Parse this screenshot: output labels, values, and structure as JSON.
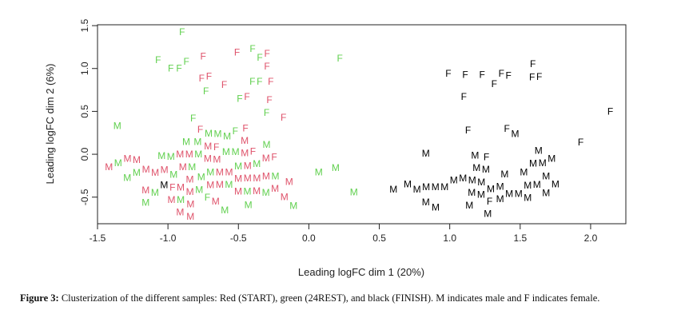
{
  "chart_data": {
    "type": "scatter",
    "xlabel": "Leading logFC dim 1 (20%)",
    "ylabel": "Leading logFC dim 2 (6%)",
    "xlim": [
      -1.5,
      2.25
    ],
    "ylim": [
      -0.81,
      1.51
    ],
    "xticks": [
      "-1.5",
      "-1.0",
      "-0.5",
      "0.0",
      "0.5",
      "1.0",
      "1.5",
      "2.0"
    ],
    "xtick_values": [
      -1.5,
      -1.0,
      -0.5,
      0.0,
      0.5,
      1.0,
      1.5,
      2.0
    ],
    "yticks": [
      "-0.5",
      "0.0",
      "0.5",
      "1.0",
      "1.5"
    ],
    "ytick_values": [
      -0.5,
      0.0,
      0.5,
      1.0,
      1.5
    ],
    "grid": false,
    "groups": [
      {
        "name": "START",
        "color": "#DF536B"
      },
      {
        "name": "24REST",
        "color": "#61D04F"
      },
      {
        "name": "FINISH",
        "color": "#000000"
      }
    ],
    "points": [
      [
        0.99,
        0.94,
        "F",
        "FINISH"
      ],
      [
        1.11,
        0.93,
        "F",
        "FINISH"
      ],
      [
        1.23,
        0.93,
        "F",
        "FINISH"
      ],
      [
        1.38,
        0.94,
        "F",
        "FINISH"
      ],
      [
        1.4,
        0.92,
        "F",
        "FINISH"
      ],
      [
        1.32,
        0.82,
        "F",
        "FINISH"
      ],
      [
        1.59,
        1.02,
        "F",
        "FINISH"
      ],
      [
        1.6,
        0.93,
        "F",
        "FINISH"
      ],
      [
        1.62,
        0.91,
        "F",
        "FINISH"
      ],
      [
        1.1,
        0.67,
        "F",
        "FINISH"
      ],
      [
        2.14,
        0.5,
        "F",
        "FINISH"
      ],
      [
        1.13,
        0.28,
        "F",
        "FINISH"
      ],
      [
        1.42,
        0.3,
        "F",
        "FINISH"
      ],
      [
        1.45,
        0.24,
        "M",
        "FINISH"
      ],
      [
        1.93,
        0.14,
        "F",
        "FINISH"
      ],
      [
        0.83,
        0.01,
        "M",
        "FINISH"
      ],
      [
        1.26,
        -0.05,
        "F",
        "FINISH"
      ],
      [
        1.18,
        -0.08,
        "M",
        "FINISH"
      ],
      [
        1.19,
        -0.16,
        "M",
        "FINISH"
      ],
      [
        1.24,
        -0.17,
        "M",
        "FINISH"
      ],
      [
        1.63,
        0.01,
        "M",
        "FINISH"
      ],
      [
        1.6,
        -0.09,
        "M",
        "FINISH"
      ],
      [
        1.65,
        -0.09,
        "M",
        "FINISH"
      ],
      [
        1.72,
        -0.05,
        "M",
        "FINISH"
      ],
      [
        1.53,
        -0.21,
        "M",
        "FINISH"
      ],
      [
        1.64,
        -0.25,
        "M",
        "FINISH"
      ],
      [
        0.6,
        -0.41,
        "M",
        "FINISH"
      ],
      [
        0.72,
        -0.35,
        "M",
        "FINISH"
      ],
      [
        0.82,
        -0.41,
        "M",
        "FINISH"
      ],
      [
        0.91,
        -0.38,
        "M",
        "FINISH"
      ],
      [
        0.95,
        -0.38,
        "M",
        "FINISH"
      ],
      [
        1.0,
        -0.38,
        "M",
        "FINISH"
      ],
      [
        1.05,
        -0.3,
        "M",
        "FINISH"
      ],
      [
        1.11,
        -0.28,
        "M",
        "FINISH"
      ],
      [
        1.15,
        -0.28,
        "M",
        "FINISH"
      ],
      [
        1.21,
        -0.28,
        "M",
        "FINISH"
      ],
      [
        1.39,
        -0.3,
        "M",
        "FINISH"
      ],
      [
        1.39,
        -0.34,
        "M",
        "FINISH"
      ],
      [
        1.51,
        -0.37,
        "M",
        "FINISH"
      ],
      [
        1.57,
        -0.35,
        "M",
        "FINISH"
      ],
      [
        1.7,
        -0.35,
        "M",
        "FINISH"
      ],
      [
        1.62,
        -0.45,
        "M",
        "FINISH"
      ],
      [
        1.45,
        -0.46,
        "M",
        "FINISH"
      ],
      [
        1.48,
        -0.46,
        "M",
        "FINISH"
      ],
      [
        1.51,
        -0.5,
        "M",
        "FINISH"
      ],
      [
        1.17,
        -0.47,
        "M",
        "FINISH"
      ],
      [
        1.22,
        -0.47,
        "M",
        "FINISH"
      ],
      [
        1.31,
        -0.47,
        "M",
        "FINISH"
      ],
      [
        1.34,
        -0.49,
        "M",
        "FINISH"
      ],
      [
        1.28,
        -0.53,
        "F",
        "FINISH"
      ],
      [
        1.14,
        -0.56,
        "M",
        "FINISH"
      ],
      [
        0.83,
        -0.56,
        "M",
        "FINISH"
      ],
      [
        0.9,
        -0.62,
        "M",
        "FINISH"
      ],
      [
        1.27,
        -0.65,
        "M",
        "FINISH"
      ],
      [
        -0.97,
        -0.31,
        "M",
        "FINISH"
      ],
      [
        0.22,
        1.12,
        "F",
        "24REST"
      ],
      [
        0.07,
        -0.21,
        "M",
        "24REST"
      ],
      [
        0.19,
        -0.16,
        "M",
        "24REST"
      ],
      [
        0.32,
        -0.44,
        "M",
        "24REST"
      ],
      [
        -0.9,
        1.44,
        "F",
        "24REST"
      ],
      [
        -1.07,
        1.1,
        "F",
        "24REST"
      ],
      [
        -0.98,
        1.0,
        "F",
        "24REST"
      ],
      [
        -0.91,
        1.0,
        "F",
        "24REST"
      ],
      [
        -0.88,
        1.08,
        "F",
        "24REST"
      ],
      [
        -0.38,
        1.23,
        "F",
        "24REST"
      ],
      [
        -0.34,
        1.13,
        "F",
        "24REST"
      ],
      [
        -0.73,
        0.77,
        "F",
        "24REST"
      ],
      [
        -0.38,
        0.85,
        "F",
        "24REST"
      ],
      [
        -0.37,
        0.85,
        "F",
        "24REST"
      ],
      [
        -0.49,
        0.65,
        "F",
        "24REST"
      ],
      [
        -0.3,
        0.5,
        "F",
        "24REST"
      ],
      [
        -0.82,
        0.42,
        "F",
        "24REST"
      ],
      [
        -1.36,
        0.33,
        "M",
        "24REST"
      ],
      [
        -0.66,
        0.24,
        "M",
        "24REST"
      ],
      [
        -0.62,
        0.23,
        "M",
        "24REST"
      ],
      [
        -0.6,
        0.27,
        "F",
        "24REST"
      ],
      [
        -1.2,
        -0.1,
        "M",
        "24REST"
      ],
      [
        -1.09,
        -0.03,
        "M",
        "24REST"
      ],
      [
        -1.04,
        -0.19,
        "M",
        "24REST"
      ],
      [
        -0.96,
        -0.04,
        "M",
        "24REST"
      ],
      [
        -0.87,
        0.02,
        "M",
        "24REST"
      ],
      [
        -0.77,
        0.01,
        "M",
        "24REST"
      ],
      [
        -0.59,
        0.03,
        "M",
        "24REST"
      ],
      [
        -0.54,
        -0.01,
        "M",
        "24REST"
      ],
      [
        -0.3,
        0.06,
        "M",
        "24REST"
      ],
      [
        -0.62,
        0.21,
        "M",
        "24REST"
      ],
      [
        -0.43,
        -0.11,
        "M",
        "24REST"
      ],
      [
        -0.89,
        -0.27,
        "M",
        "24REST"
      ],
      [
        -1.1,
        -0.32,
        "M",
        "24REST"
      ],
      [
        -1.02,
        -0.44,
        "M",
        "24REST"
      ],
      [
        -1.1,
        -0.55,
        "M",
        "24REST"
      ],
      [
        -0.9,
        -0.48,
        "M",
        "24REST"
      ],
      [
        -0.81,
        -0.23,
        "M",
        "24REST"
      ],
      [
        -0.76,
        -0.14,
        "M",
        "24REST"
      ],
      [
        -0.76,
        -0.41,
        "M",
        "24REST"
      ],
      [
        -0.73,
        -0.5,
        "F",
        "24REST"
      ],
      [
        -0.7,
        -0.23,
        "M",
        "24REST"
      ],
      [
        -0.68,
        -0.2,
        "M",
        "24REST"
      ],
      [
        -0.65,
        -0.23,
        "M",
        "24REST"
      ],
      [
        -0.62,
        -0.31,
        "M",
        "24REST"
      ],
      [
        -0.57,
        -0.35,
        "M",
        "24REST"
      ],
      [
        -0.39,
        -0.25,
        "M",
        "24REST"
      ],
      [
        -0.43,
        -0.49,
        "M",
        "24REST"
      ],
      [
        -0.43,
        -0.55,
        "M",
        "24REST"
      ],
      [
        -0.63,
        -0.65,
        "M",
        "24REST"
      ],
      [
        -0.18,
        -0.6,
        "M",
        "24REST"
      ],
      [
        -0.75,
        1.14,
        "F",
        "START"
      ],
      [
        -0.51,
        1.19,
        "F",
        "START"
      ],
      [
        -0.32,
        1.17,
        "F",
        "START"
      ],
      [
        -0.3,
        1.03,
        "F",
        "START"
      ],
      [
        -0.73,
        0.9,
        "F",
        "START"
      ],
      [
        -0.74,
        0.86,
        "F",
        "START"
      ],
      [
        -0.6,
        0.81,
        "F",
        "START"
      ],
      [
        -0.27,
        0.85,
        "F",
        "START"
      ],
      [
        -0.44,
        0.67,
        "F",
        "START"
      ],
      [
        -0.28,
        0.62,
        "F",
        "START"
      ],
      [
        -0.18,
        0.43,
        "F",
        "START"
      ],
      [
        -0.72,
        0.29,
        "F",
        "START"
      ],
      [
        -0.45,
        0.28,
        "F",
        "START"
      ],
      [
        -1.25,
        -0.15,
        "M",
        "START"
      ],
      [
        -1.1,
        -0.05,
        "M",
        "START"
      ],
      [
        -1.09,
        -0.09,
        "M",
        "START"
      ],
      [
        -1.03,
        -0.15,
        "M",
        "START"
      ],
      [
        -0.7,
        0.06,
        "M",
        "START"
      ],
      [
        -0.66,
        0.05,
        "F",
        "START"
      ],
      [
        -0.73,
        -0.03,
        "M",
        "START"
      ],
      [
        -0.47,
        0.1,
        "M",
        "START"
      ],
      [
        -0.46,
        0.01,
        "M",
        "START"
      ],
      [
        -0.44,
        0.0,
        "F",
        "START"
      ],
      [
        -0.31,
        -0.01,
        "M",
        "START"
      ],
      [
        -0.26,
        -0.02,
        "F",
        "START"
      ],
      [
        -0.91,
        -0.12,
        "M",
        "START"
      ],
      [
        -0.94,
        -0.21,
        "M",
        "START"
      ],
      [
        -0.98,
        -0.24,
        "M",
        "START"
      ],
      [
        -0.89,
        -0.37,
        "M",
        "START"
      ],
      [
        -0.9,
        -0.38,
        "F",
        "START"
      ],
      [
        -1.1,
        -0.39,
        "M",
        "START"
      ],
      [
        -0.99,
        -0.52,
        "M",
        "START"
      ],
      [
        -0.82,
        -0.14,
        "M",
        "START"
      ],
      [
        -0.82,
        -0.27,
        "M",
        "START"
      ],
      [
        -0.76,
        -0.22,
        "M",
        "START"
      ],
      [
        -0.78,
        -0.36,
        "M",
        "START"
      ],
      [
        -0.82,
        -0.5,
        "M",
        "START"
      ],
      [
        -0.68,
        -0.11,
        "M",
        "START"
      ],
      [
        -0.71,
        -0.33,
        "M",
        "START"
      ],
      [
        -0.66,
        -0.33,
        "M",
        "START"
      ],
      [
        -0.59,
        -0.18,
        "M",
        "START"
      ],
      [
        -0.55,
        -0.14,
        "M",
        "START"
      ],
      [
        -0.55,
        -0.25,
        "M",
        "START"
      ],
      [
        -0.56,
        -0.3,
        "M",
        "START"
      ],
      [
        -0.59,
        -0.42,
        "M",
        "START"
      ],
      [
        -0.51,
        -0.22,
        "M",
        "START"
      ],
      [
        -0.44,
        -0.2,
        "M",
        "START"
      ],
      [
        -0.47,
        -0.43,
        "M",
        "START"
      ],
      [
        -0.36,
        -0.4,
        "M",
        "START"
      ],
      [
        -0.68,
        -0.55,
        "M",
        "START"
      ],
      [
        -0.9,
        -0.65,
        "M",
        "START"
      ],
      [
        -0.86,
        -0.62,
        "M",
        "START"
      ],
      [
        -0.84,
        -0.74,
        "M",
        "START"
      ],
      [
        -0.14,
        -0.32,
        "M",
        "START"
      ],
      [
        -0.24,
        -0.5,
        "M",
        "START"
      ]
    ]
  },
  "caption": {
    "label": "Figure 3:",
    "text": " Clusterization of the different samples: Red (START), green (24REST), and black (FINISH). M indicates male and F indicates female."
  }
}
